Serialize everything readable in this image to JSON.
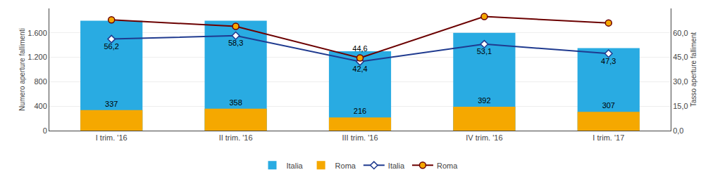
{
  "chart_data": {
    "type": "bar",
    "categories": [
      "I trim. '16",
      "II trim. '16",
      "III trim. '16",
      "IV trim. '16",
      "I trim. '17"
    ],
    "series": [
      {
        "name": "Italia",
        "type": "bar",
        "color": "#29ABE2",
        "values": [
          1800,
          1800,
          1300,
          1600,
          1350
        ]
      },
      {
        "name": "Roma",
        "type": "bar",
        "color": "#F5A800",
        "values": [
          337,
          358,
          216,
          392,
          307
        ],
        "data_labels": true
      },
      {
        "name": "Italia",
        "type": "line",
        "axis": "y2",
        "color": "#1F3A8F",
        "marker": "diamond",
        "line_style": "solid",
        "values": [
          56.2,
          58.3,
          42.4,
          53.1,
          47.3
        ],
        "value_labels": [
          "56,2",
          "58,3",
          "42,4",
          "53,1",
          "47,3"
        ]
      },
      {
        "name": "Roma",
        "type": "line",
        "axis": "y2",
        "color": "#6B0000",
        "marker": "circle",
        "line_style": "solid",
        "values": [
          68.0,
          64.0,
          44.6,
          70.0,
          66.1
        ],
        "value_labels": [
          null,
          null,
          "44,6",
          null,
          null
        ]
      }
    ],
    "ylabel": "Numero aperture fallimenti",
    "y2label": "Tasso aperture falliment",
    "ylim": [
      0,
      2000
    ],
    "yticks": [
      0,
      400,
      800,
      {
        "value": 1200,
        "label": "1.200"
      },
      {
        "value": 1600,
        "label": "1.600"
      }
    ],
    "y2lim": [
      0,
      75.0
    ],
    "y2ticks": [
      {
        "value": 0,
        "label": "0,0"
      },
      {
        "value": 15,
        "label": "15,0"
      },
      {
        "value": 30,
        "label": "30,0"
      },
      {
        "value": 45,
        "label": "45,0"
      },
      {
        "value": 60,
        "label": "60,0"
      }
    ],
    "grid": true,
    "legend": "bottom"
  }
}
